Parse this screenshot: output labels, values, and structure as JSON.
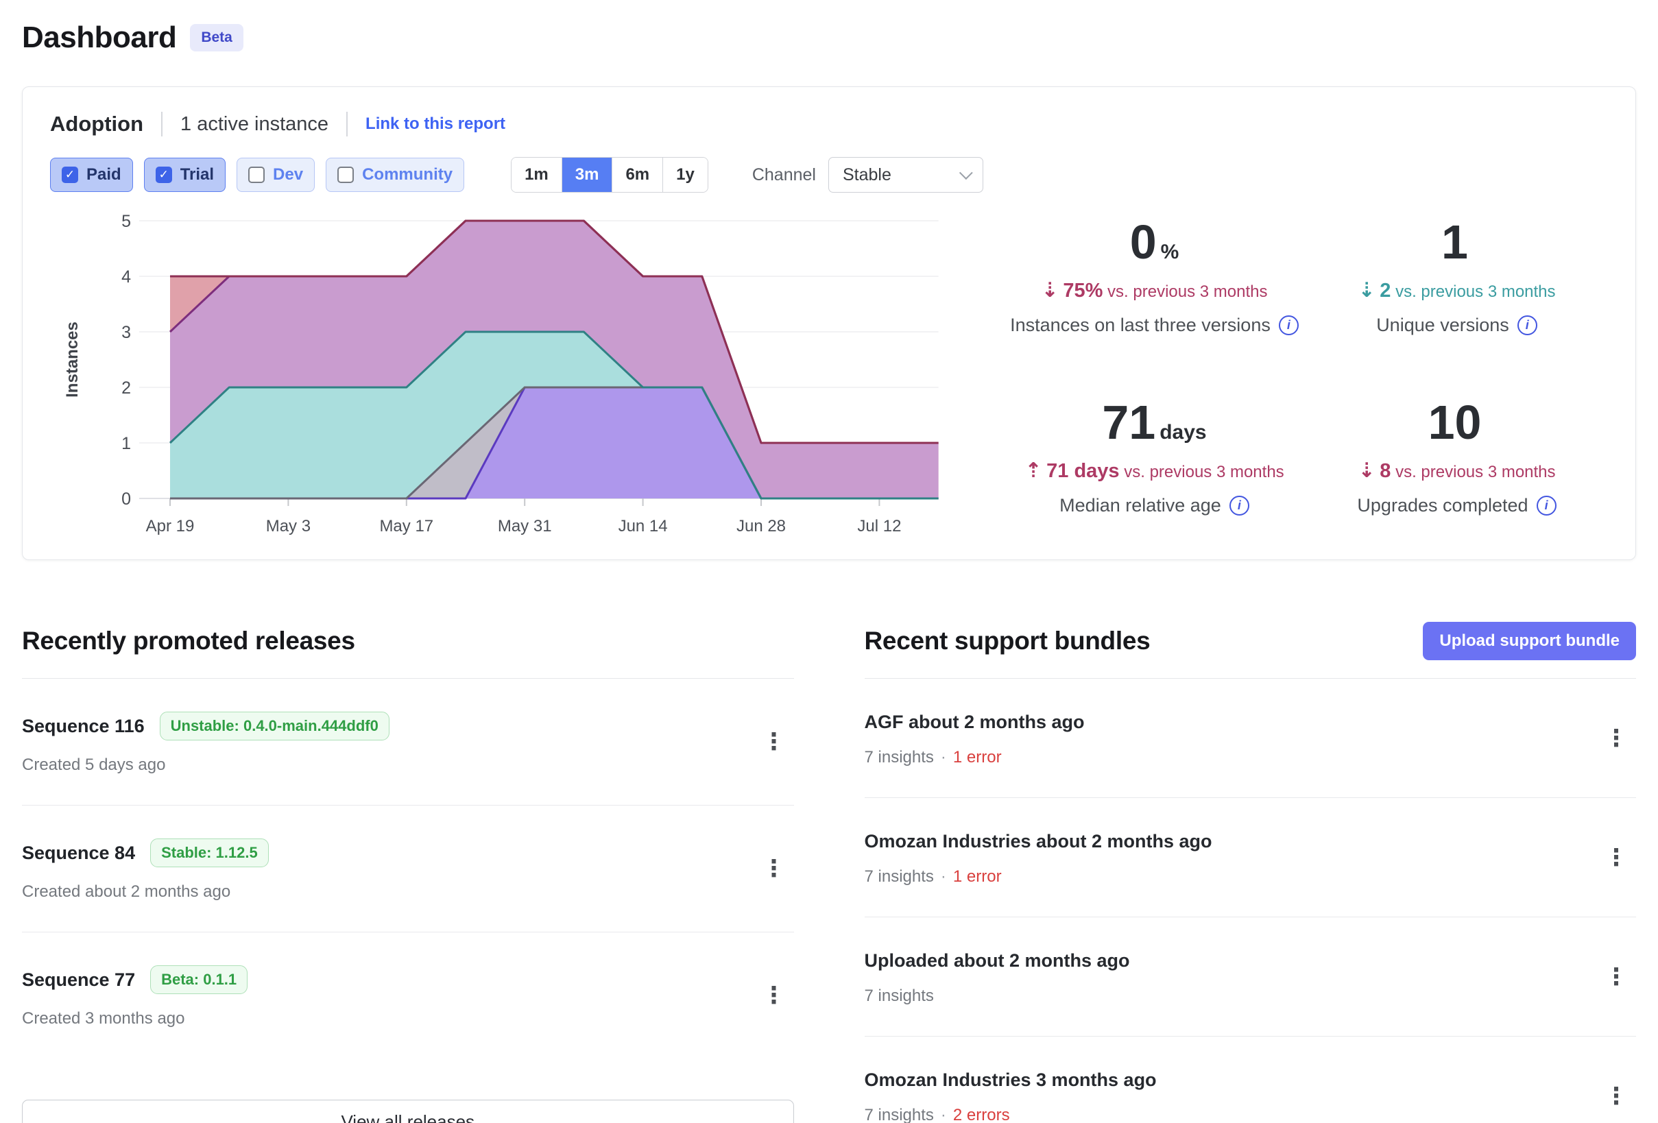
{
  "page": {
    "title": "Dashboard",
    "badge": "Beta"
  },
  "icons": {
    "check": "✓",
    "kebab": "⋮",
    "info": "i"
  },
  "colors": {
    "accent_blue": "#3e63f3",
    "active_range_blue": "#567ef3",
    "upload_button_indigo": "#6b72f3",
    "negative_red": "#ad3a64",
    "positive_teal": "#3a9ca0",
    "error_red": "#d9403e",
    "success_green": "#2f9e44"
  },
  "adoption": {
    "title": "Adoption",
    "subtitle": "1 active instance",
    "link": "Link to this report",
    "filters": [
      {
        "label": "Paid",
        "checked": true
      },
      {
        "label": "Trial",
        "checked": true
      },
      {
        "label": "Dev",
        "checked": false
      },
      {
        "label": "Community",
        "checked": false
      }
    ],
    "ranges": [
      {
        "label": "1m",
        "active": false
      },
      {
        "label": "3m",
        "active": true
      },
      {
        "label": "6m",
        "active": false
      },
      {
        "label": "1y",
        "active": false
      }
    ],
    "channel": {
      "label": "Channel",
      "value": "Stable"
    },
    "stats": [
      {
        "value": "0",
        "unit": "%",
        "arrow": "⇣",
        "delta": "75%",
        "delta_rest": "vs. previous 3 months",
        "delta_color": "#ad3a64",
        "label": "Instances on last three versions"
      },
      {
        "value": "1",
        "unit": "",
        "arrow": "⇣",
        "delta": "2",
        "delta_rest": "vs. previous 3 months",
        "delta_color": "#3a9ca0",
        "label": "Unique versions"
      },
      {
        "value": "71",
        "unit": "days",
        "arrow": "⇡",
        "delta": "71 days",
        "delta_rest": "vs. previous 3 months",
        "delta_color": "#ad3a64",
        "label": "Median relative age"
      },
      {
        "value": "10",
        "unit": "",
        "arrow": "⇣",
        "delta": "8",
        "delta_rest": "vs. previous 3 months",
        "delta_color": "#ad3a64",
        "label": "Upgrades completed"
      }
    ]
  },
  "chart_data": {
    "type": "area",
    "title": "",
    "xlabel": "",
    "ylabel": "Instances",
    "ylim": [
      0,
      5
    ],
    "grid": "horizontal",
    "legend": "none",
    "x_tick_labels": [
      "Apr 19",
      "May 3",
      "May 17",
      "May 31",
      "Jun 14",
      "Jun 28",
      "Jul 12"
    ],
    "x_weekly_points": [
      "Apr 19",
      "Apr 26",
      "May 3",
      "May 10",
      "May 17",
      "May 24",
      "May 31",
      "Jun 7",
      "Jun 14",
      "Jun 21",
      "Jun 28",
      "Jul 5",
      "Jul 12",
      "Jul 19"
    ],
    "series": [
      {
        "name": "version-area-red",
        "stroke": "#8e3054",
        "fill": "#e0a1aa",
        "values": [
          4,
          4,
          4,
          4,
          4,
          5,
          5,
          5,
          4,
          4,
          1,
          1,
          1,
          1
        ]
      },
      {
        "name": "version-area-pink",
        "stroke": "#7d2e7d",
        "fill": "#c99ccf",
        "values": [
          3,
          4,
          4,
          4,
          4,
          5,
          5,
          5,
          4,
          4,
          1,
          1,
          1,
          1
        ]
      },
      {
        "name": "version-area-teal",
        "stroke": "#2f8184",
        "fill": "#aadedd",
        "values": [
          1,
          2,
          2,
          2,
          2,
          3,
          3,
          3,
          2,
          2,
          0,
          0,
          0,
          0
        ]
      },
      {
        "name": "version-area-gray",
        "stroke": "#6a6774",
        "fill": "#c0bdc8",
        "values": [
          0,
          0,
          0,
          0,
          0,
          1,
          2,
          2,
          2,
          2,
          0,
          0,
          0,
          0
        ]
      },
      {
        "name": "version-area-purple",
        "stroke": "#5b3ac0",
        "fill": "#ae97ec",
        "values": [
          0,
          0,
          0,
          0,
          0,
          0,
          2,
          2,
          2,
          2,
          0,
          0,
          0,
          0
        ]
      }
    ]
  },
  "releases": {
    "heading": "Recently promoted releases",
    "items": [
      {
        "title": "Sequence 116",
        "badge": "Unstable: 0.4.0-main.444ddf0",
        "created": "Created 5 days ago"
      },
      {
        "title": "Sequence 84",
        "badge": "Stable: 1.12.5",
        "created": "Created about 2 months ago"
      },
      {
        "title": "Sequence 77",
        "badge": "Beta: 0.1.1",
        "created": "Created 3 months ago"
      }
    ],
    "view_all": "View all releases"
  },
  "bundles": {
    "heading": "Recent support bundles",
    "upload_label": "Upload support bundle",
    "items": [
      {
        "title": "AGF about 2 months ago",
        "insights": "7 insights",
        "errors": "1 error"
      },
      {
        "title": "Omozan Industries about 2 months ago",
        "insights": "7 insights",
        "errors": "1 error"
      },
      {
        "title": "Uploaded about 2 months ago",
        "insights": "7 insights",
        "errors": null
      },
      {
        "title": "Omozan Industries 3 months ago",
        "insights": "7 insights",
        "errors": "2 errors"
      }
    ]
  }
}
